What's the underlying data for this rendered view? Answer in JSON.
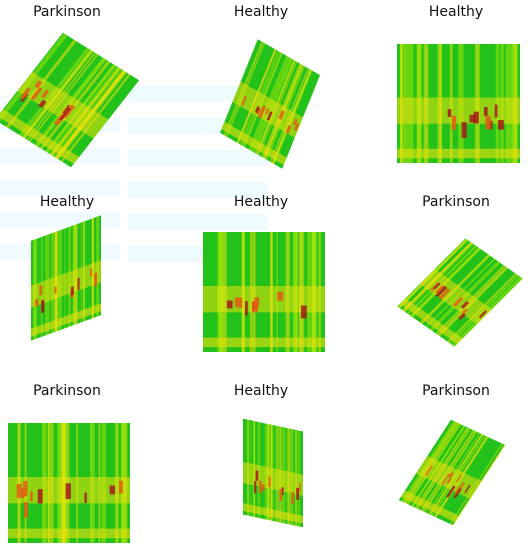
{
  "grid": {
    "cells": [
      {
        "label": "Parkinson"
      },
      {
        "label": "Healthy"
      },
      {
        "label": "Healthy"
      },
      {
        "label": "Healthy"
      },
      {
        "label": "Healthy"
      },
      {
        "label": "Parkinson"
      },
      {
        "label": "Parkinson"
      },
      {
        "label": "Healthy"
      },
      {
        "label": "Parkinson"
      }
    ]
  },
  "colors": {
    "green": "#22c21a",
    "lime": "#9be60a",
    "yellow": "#e9e10d",
    "orange": "#e35d12",
    "red": "#a51a1a",
    "background": "#ffffff"
  }
}
